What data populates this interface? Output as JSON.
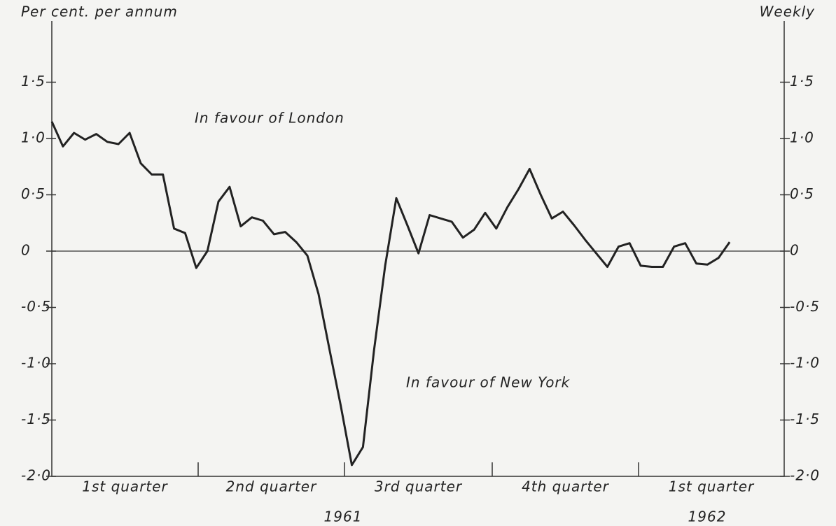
{
  "chart_data": {
    "type": "line",
    "y_label": "Per cent. per annum",
    "frequency": "Weekly",
    "annotations": [
      "In favour of London",
      "In favour of New York"
    ],
    "quarters": [
      "1st quarter",
      "2nd quarter",
      "3rd quarter",
      "4th quarter",
      "1st quarter"
    ],
    "years": [
      "1961",
      "1962"
    ],
    "categories": [
      null,
      null,
      null,
      null,
      null,
      null,
      null,
      null,
      null,
      null,
      null,
      null,
      null,
      null,
      null,
      null,
      null,
      null,
      null,
      null,
      null,
      null,
      null,
      null,
      null,
      null,
      null,
      null,
      null,
      null,
      null,
      null,
      null,
      null,
      null,
      null,
      null,
      null,
      null,
      null,
      null,
      null,
      null,
      null,
      null,
      null,
      null,
      null,
      null,
      null,
      null,
      null,
      null,
      null,
      null,
      null,
      null,
      null,
      null,
      null,
      null,
      null
    ],
    "values": [
      1.15,
      0.93,
      1.05,
      0.99,
      1.04,
      0.97,
      0.95,
      1.05,
      0.78,
      0.68,
      0.68,
      0.2,
      0.16,
      -0.15,
      0.0,
      0.44,
      0.57,
      0.22,
      0.3,
      0.27,
      0.15,
      0.17,
      0.08,
      -0.04,
      -0.38,
      -0.88,
      -1.37,
      -1.9,
      -1.74,
      -0.88,
      -0.13,
      0.47,
      0.23,
      -0.02,
      0.32,
      0.29,
      0.26,
      0.12,
      0.19,
      0.34,
      0.2,
      0.39,
      0.55,
      0.73,
      0.5,
      0.29,
      0.35,
      0.23,
      0.1,
      -0.02,
      -0.14,
      0.04,
      0.07,
      -0.13,
      -0.14,
      -0.14,
      0.04,
      0.07,
      -0.11,
      -0.12,
      -0.06,
      0.08
    ],
    "color": "#222222",
    "ylim": [
      -2.0,
      2.0
    ],
    "yticks": [
      {
        "value": 1.5,
        "label": "1·5"
      },
      {
        "value": 1.0,
        "label": "1·0"
      },
      {
        "value": 0.5,
        "label": "0·5"
      },
      0,
      {
        "value": -0.5,
        "label": "-0·5"
      },
      {
        "value": -1.0,
        "label": "-1·0"
      },
      {
        "value": -1.5,
        "label": "-1·5"
      },
      {
        "value": -2.0,
        "label": "-2·0"
      }
    ]
  }
}
